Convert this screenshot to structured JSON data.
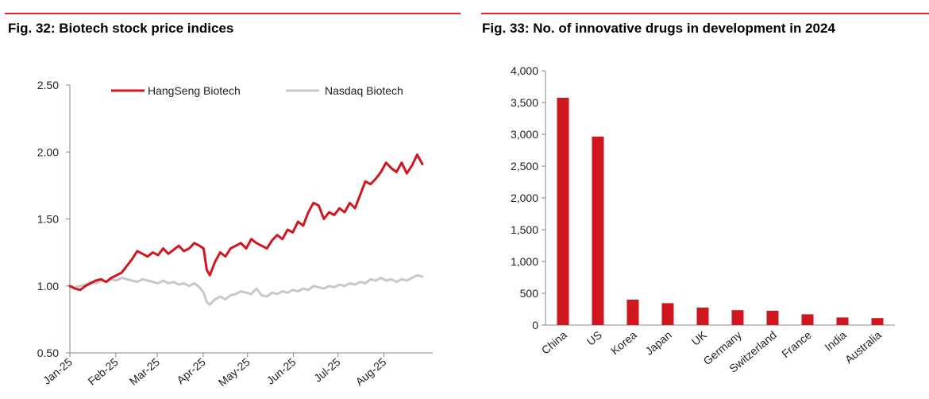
{
  "chart_data": [
    {
      "type": "line",
      "title": "Fig. 32: Biotech stock price indices",
      "xlabel": "",
      "ylabel": "",
      "ylim": [
        0.5,
        2.5
      ],
      "yticks": [
        "2.50",
        "2.00",
        "1.50",
        "1.00",
        "0.50"
      ],
      "ytick_values": [
        2.5,
        2.0,
        1.5,
        1.0,
        0.5
      ],
      "xticks": [
        "Jan-25",
        "Feb-25",
        "Mar-25",
        "Apr-25",
        "May-25",
        "Jun-25",
        "Jul-25",
        "Aug-25"
      ],
      "x_range": [
        0,
        35
      ],
      "xtick_positions": [
        0,
        4.43,
        8.43,
        12.86,
        17.14,
        21.57,
        25.86,
        30.29
      ],
      "series": [
        {
          "name": "HangSeng Biotech",
          "color": "#d0171f",
          "x": [
            0,
            0.5,
            1,
            1.5,
            2,
            2.5,
            3,
            3.5,
            4,
            4.5,
            5,
            5.5,
            6,
            6.5,
            7,
            7.5,
            8,
            8.5,
            9,
            9.5,
            10,
            10.5,
            11,
            11.5,
            12,
            12.5,
            12.9,
            13.2,
            13.5,
            14,
            14.5,
            15,
            15.5,
            16,
            16.5,
            17,
            17.5,
            18,
            18.5,
            19,
            19.5,
            20,
            20.5,
            21,
            21.5,
            22,
            22.5,
            23,
            23.5,
            24,
            24.5,
            25,
            25.5,
            26,
            26.5,
            27,
            27.5,
            28,
            28.5,
            29,
            29.5,
            30,
            30.5,
            31,
            31.5,
            32,
            32.5,
            33,
            33.5,
            34
          ],
          "values": [
            1.0,
            0.98,
            0.97,
            1.0,
            1.02,
            1.04,
            1.05,
            1.03,
            1.06,
            1.08,
            1.1,
            1.15,
            1.2,
            1.26,
            1.24,
            1.22,
            1.25,
            1.23,
            1.28,
            1.24,
            1.27,
            1.3,
            1.26,
            1.28,
            1.32,
            1.3,
            1.28,
            1.12,
            1.08,
            1.18,
            1.25,
            1.22,
            1.28,
            1.3,
            1.32,
            1.28,
            1.35,
            1.32,
            1.3,
            1.28,
            1.34,
            1.38,
            1.35,
            1.42,
            1.4,
            1.48,
            1.45,
            1.55,
            1.62,
            1.6,
            1.5,
            1.55,
            1.53,
            1.58,
            1.55,
            1.62,
            1.58,
            1.68,
            1.78,
            1.76,
            1.8,
            1.85,
            1.92,
            1.88,
            1.85,
            1.92,
            1.84,
            1.9,
            1.98,
            1.91
          ]
        },
        {
          "name": "Nasdaq Biotech",
          "color": "#c8c8c8",
          "x": [
            0,
            0.5,
            1,
            1.5,
            2,
            2.5,
            3,
            3.5,
            4,
            4.5,
            5,
            5.5,
            6,
            6.5,
            7,
            7.5,
            8,
            8.5,
            9,
            9.5,
            10,
            10.5,
            11,
            11.5,
            12,
            12.5,
            12.9,
            13.2,
            13.5,
            14,
            14.5,
            15,
            15.5,
            16,
            16.5,
            17,
            17.5,
            18,
            18.5,
            19,
            19.5,
            20,
            20.5,
            21,
            21.5,
            22,
            22.5,
            23,
            23.5,
            24,
            24.5,
            25,
            25.5,
            26,
            26.5,
            27,
            27.5,
            28,
            28.5,
            29,
            29.5,
            30,
            30.5,
            31,
            31.5,
            32,
            32.5,
            33,
            33.5,
            34
          ],
          "values": [
            1.0,
            0.99,
            1.0,
            1.01,
            1.03,
            1.02,
            1.04,
            1.03,
            1.05,
            1.04,
            1.06,
            1.05,
            1.04,
            1.03,
            1.05,
            1.04,
            1.03,
            1.02,
            1.04,
            1.02,
            1.03,
            1.01,
            1.02,
            1.0,
            1.02,
            0.99,
            0.95,
            0.88,
            0.86,
            0.9,
            0.92,
            0.9,
            0.93,
            0.94,
            0.96,
            0.95,
            0.94,
            0.98,
            0.93,
            0.92,
            0.95,
            0.94,
            0.96,
            0.95,
            0.97,
            0.96,
            0.98,
            0.97,
            1.0,
            0.99,
            0.98,
            1.0,
            0.99,
            1.01,
            1.0,
            1.02,
            1.01,
            1.03,
            1.02,
            1.05,
            1.04,
            1.06,
            1.04,
            1.05,
            1.03,
            1.05,
            1.04,
            1.06,
            1.08,
            1.07
          ]
        }
      ],
      "legend": "top"
    },
    {
      "type": "bar",
      "title": "Fig. 33: No. of innovative drugs in development in 2024",
      "xlabel": "",
      "ylabel": "",
      "ylim": [
        0,
        4000
      ],
      "yticks": [
        "4,000",
        "3,500",
        "3,000",
        "2,500",
        "2,000",
        "1,500",
        "1,000",
        "500",
        "0"
      ],
      "ytick_values": [
        4000,
        3500,
        3000,
        2500,
        2000,
        1500,
        1000,
        500,
        0
      ],
      "categories": [
        "China",
        "US",
        "Korea",
        "Japan",
        "UK",
        "Germany",
        "Switzerland",
        "France",
        "India",
        "Australia"
      ],
      "values": [
        3575,
        2965,
        400,
        345,
        275,
        235,
        225,
        170,
        120,
        110
      ],
      "color": "#d0171f"
    }
  ]
}
